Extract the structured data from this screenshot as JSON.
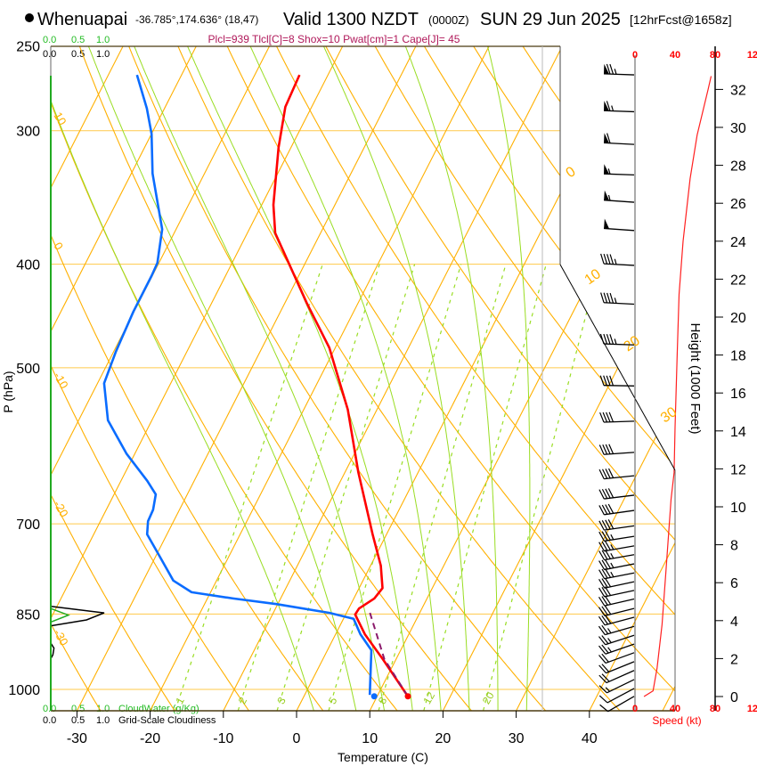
{
  "header": {
    "station": "Whenuapai",
    "coords": "-36.785°,174.636° (18,47)",
    "valid": "Valid 1300 NZDT",
    "zulu": "(0000Z)",
    "date": "SUN 29 Jun 2025",
    "forecast": "[12hrFcst@1658z]",
    "indices": "Plcl=939 Tlcl[C]=8 Shox=10 Pwat[cm]=1 Cape[J]= 45"
  },
  "cloud_legend": {
    "scale": [
      "0.0",
      "0.5",
      "1.0"
    ],
    "cloudwater_label": "CloudWater (g/Kg)",
    "cloudiness_label": "Grid-Scale Cloudiness"
  },
  "colors": {
    "temperature": "#ff0000",
    "dewpoint": "#0a6cff",
    "parcel": "#8b1a6b",
    "isotherm": "#ffb000",
    "moist": "#99dd22",
    "cloudwater": "#22aa22",
    "cloudiness": "#000000",
    "indices": "#b0185a"
  },
  "chart_data": {
    "type": "skew-t",
    "xlabel": "Temperature (C)",
    "ylabel": "P (hPa)",
    "y2label": "Height (1000 Feet)",
    "speed_label": "Speed (kt)",
    "pressure_ticks": [
      250,
      300,
      400,
      500,
      700,
      850,
      1000
    ],
    "temp_ticks": [
      -30,
      -20,
      -10,
      0,
      10,
      20,
      30,
      40
    ],
    "height_ticks": [
      0,
      2,
      4,
      6,
      8,
      10,
      12,
      14,
      16,
      18,
      20,
      22,
      24,
      26,
      28,
      30,
      32
    ],
    "speed_ticks": [
      0,
      40,
      80,
      120
    ],
    "isotherm_labels": [
      0,
      10,
      20,
      30
    ],
    "dry_adiabat_labels": [
      10,
      0,
      -10,
      -20,
      -30
    ],
    "mixing_ratio_lines": [
      1,
      2,
      3,
      5,
      8,
      12,
      20
    ],
    "moist_adiabats_1000hPa": [
      0,
      6,
      10,
      14,
      18,
      22,
      26,
      30
    ],
    "temperature": [
      [
        266,
        -43.9
      ],
      [
        285,
        -43.6
      ],
      [
        311,
        -41.7
      ],
      [
        352,
        -38.4
      ],
      [
        374,
        -36.2
      ],
      [
        410,
        -30.6
      ],
      [
        435,
        -27.0
      ],
      [
        479,
        -20.8
      ],
      [
        547,
        -14.0
      ],
      [
        626,
        -8.2
      ],
      [
        716,
        -1.9
      ],
      [
        766,
        1.4
      ],
      [
        804,
        3.2
      ],
      [
        822,
        2.8
      ],
      [
        840,
        1.4
      ],
      [
        851,
        1.3
      ],
      [
        888,
        4.0
      ],
      [
        937,
        8.2
      ],
      [
        1015,
        14.2
      ]
    ],
    "dewpoint": [
      [
        266,
        -66.1
      ],
      [
        286,
        -62.4
      ],
      [
        302,
        -60.0
      ],
      [
        329,
        -57.1
      ],
      [
        371,
        -51.9
      ],
      [
        399,
        -50.2
      ],
      [
        410,
        -50.1
      ],
      [
        443,
        -50.1
      ],
      [
        483,
        -49.7
      ],
      [
        517,
        -49.1
      ],
      [
        560,
        -46.0
      ],
      [
        602,
        -41.1
      ],
      [
        638,
        -36.4
      ],
      [
        657,
        -34.3
      ],
      [
        679,
        -33.6
      ],
      [
        696,
        -33.5
      ],
      [
        716,
        -32.7
      ],
      [
        747,
        -29.8
      ],
      [
        791,
        -25.9
      ],
      [
        811,
        -22.6
      ],
      [
        822,
        -16.5
      ],
      [
        832,
        -10.2
      ],
      [
        848,
        -2.3
      ],
      [
        859,
        1.4
      ],
      [
        888,
        3.4
      ],
      [
        919,
        6.0
      ],
      [
        1012,
        8.9
      ]
    ],
    "parcel": [
      [
        848,
        3.2
      ],
      [
        937,
        8.4
      ],
      [
        1015,
        14.2
      ]
    ],
    "surface_temperature": [
      1015,
      14.2
    ],
    "surface_dewpoint": [
      1015,
      9.6
    ],
    "cloudiness": [
      [
        836,
        0
      ],
      [
        848,
        1.0
      ],
      [
        861,
        0.67
      ],
      [
        872,
        0
      ],
      [
        905,
        0
      ],
      [
        915,
        0.06
      ],
      [
        928,
        0.04
      ],
      [
        936,
        0
      ]
    ],
    "cloud_water": [
      [
        840,
        0
      ],
      [
        852,
        0.33
      ],
      [
        865,
        0
      ]
    ],
    "speed_profile": [
      [
        0,
        9
      ],
      [
        0.3,
        18
      ],
      [
        1.5,
        22
      ],
      [
        3.8,
        27
      ],
      [
        6.7,
        31
      ],
      [
        10.4,
        36
      ],
      [
        11.8,
        39
      ],
      [
        14.2,
        40
      ],
      [
        17.9,
        42
      ],
      [
        21.2,
        44
      ],
      [
        24,
        48
      ],
      [
        27.3,
        55
      ],
      [
        29.6,
        62
      ],
      [
        32,
        73
      ],
      [
        32.7,
        76
      ]
    ],
    "winds": [
      {
        "p": 266,
        "dir": 272,
        "spd": 75
      },
      {
        "p": 288,
        "dir": 272,
        "spd": 65
      },
      {
        "p": 309,
        "dir": 273,
        "spd": 60
      },
      {
        "p": 330,
        "dir": 272,
        "spd": 55
      },
      {
        "p": 350,
        "dir": 274,
        "spd": 55
      },
      {
        "p": 372,
        "dir": 274,
        "spd": 50
      },
      {
        "p": 401,
        "dir": 273,
        "spd": 45
      },
      {
        "p": 436,
        "dir": 273,
        "spd": 45
      },
      {
        "p": 476,
        "dir": 272,
        "spd": 45
      },
      {
        "p": 520,
        "dir": 271,
        "spd": 40
      },
      {
        "p": 561,
        "dir": 268,
        "spd": 40
      },
      {
        "p": 600,
        "dir": 266,
        "spd": 40
      },
      {
        "p": 631,
        "dir": 264,
        "spd": 40
      },
      {
        "p": 658,
        "dir": 263,
        "spd": 40
      },
      {
        "p": 680,
        "dir": 262,
        "spd": 40
      },
      {
        "p": 703,
        "dir": 262,
        "spd": 38
      },
      {
        "p": 719,
        "dir": 261,
        "spd": 37
      },
      {
        "p": 734,
        "dir": 260,
        "spd": 36
      },
      {
        "p": 748,
        "dir": 260,
        "spd": 35
      },
      {
        "p": 763,
        "dir": 259,
        "spd": 35
      },
      {
        "p": 778,
        "dir": 259,
        "spd": 33
      },
      {
        "p": 793,
        "dir": 258,
        "spd": 32
      },
      {
        "p": 808,
        "dir": 258,
        "spd": 31
      },
      {
        "p": 823,
        "dir": 257,
        "spd": 30
      },
      {
        "p": 840,
        "dir": 256,
        "spd": 30
      },
      {
        "p": 856,
        "dir": 255,
        "spd": 28
      },
      {
        "p": 873,
        "dir": 254,
        "spd": 27
      },
      {
        "p": 890,
        "dir": 252,
        "spd": 25
      },
      {
        "p": 907,
        "dir": 251,
        "spd": 24
      },
      {
        "p": 924,
        "dir": 250,
        "spd": 22
      },
      {
        "p": 942,
        "dir": 248,
        "spd": 20
      },
      {
        "p": 960,
        "dir": 246,
        "spd": 18
      },
      {
        "p": 979,
        "dir": 244,
        "spd": 15
      },
      {
        "p": 998,
        "dir": 242,
        "spd": 12
      },
      {
        "p": 1015,
        "dir": 240,
        "spd": 10
      }
    ]
  }
}
